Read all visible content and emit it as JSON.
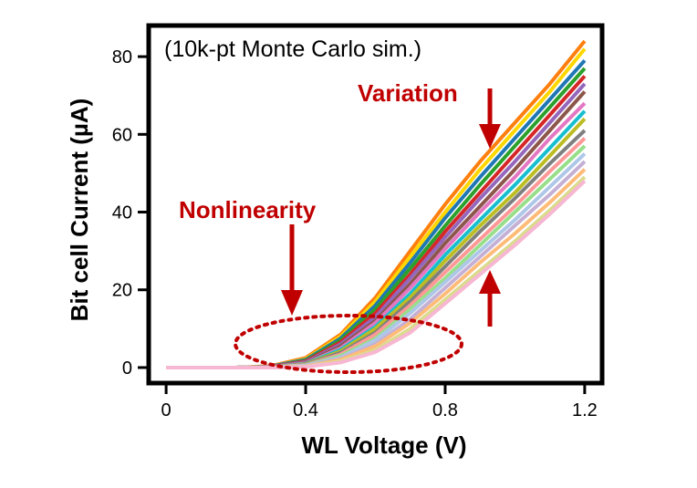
{
  "chart_data": {
    "type": "line",
    "title": "(10k-pt Monte Carlo sim.)",
    "xlabel": "WL Voltage (V)",
    "ylabel": "Bit cell Current (µA)",
    "xlim": [
      -0.05,
      1.25
    ],
    "ylim": [
      -4,
      88
    ],
    "xticks": [
      0,
      0.4,
      0.8,
      1.2
    ],
    "xtick_labels": [
      "0",
      "0.4",
      "0.8",
      "1.2"
    ],
    "yticks": [
      0,
      20,
      40,
      60,
      80
    ],
    "ytick_labels": [
      "0",
      "20",
      "40",
      "60",
      "80"
    ],
    "grid": false,
    "legend": "none",
    "x": [
      0,
      0.1,
      0.2,
      0.3,
      0.4,
      0.5,
      0.6,
      0.7,
      0.8,
      0.9,
      1.0,
      1.1,
      1.2
    ],
    "series": [
      {
        "color": "#ff7f0e",
        "values": [
          0,
          0,
          0,
          0.4,
          2.5,
          8.5,
          18,
          30,
          42,
          53,
          63,
          73,
          84
        ]
      },
      {
        "color": "#ffd700",
        "values": [
          0,
          0,
          0,
          0.3,
          2.2,
          8,
          17,
          28.5,
          40,
          51,
          61,
          71,
          82
        ]
      },
      {
        "color": "#1f77b4",
        "values": [
          0,
          0,
          0,
          0.3,
          2,
          7.5,
          16,
          27,
          38.5,
          49,
          59,
          69,
          79
        ]
      },
      {
        "color": "#2ca02c",
        "values": [
          0,
          0,
          0,
          0.2,
          1.8,
          7,
          15,
          25.5,
          36.5,
          47,
          57,
          67,
          77
        ]
      },
      {
        "color": "#d62728",
        "values": [
          0,
          0,
          0,
          0.2,
          1.6,
          6.5,
          14,
          24,
          35,
          45,
          55,
          65,
          75
        ]
      },
      {
        "color": "#9467bd",
        "values": [
          0,
          0,
          0,
          0.2,
          1.4,
          6,
          13,
          23,
          33.5,
          43.5,
          53,
          63,
          73
        ]
      },
      {
        "color": "#8c564b",
        "values": [
          0,
          0,
          0,
          0.15,
          1.2,
          5.5,
          12,
          21.5,
          32,
          41.5,
          51,
          61,
          71
        ]
      },
      {
        "color": "#e377c2",
        "values": [
          0,
          0,
          0,
          0.15,
          1.1,
          5,
          11.5,
          20.5,
          30.5,
          40,
          49,
          59,
          68
        ]
      },
      {
        "color": "#17becf",
        "values": [
          0,
          0,
          0,
          0.1,
          1,
          4.6,
          10.5,
          19,
          29,
          38,
          47,
          56.5,
          66
        ]
      },
      {
        "color": "#bcbd22",
        "values": [
          0,
          0,
          0,
          0.1,
          0.9,
          4.2,
          10,
          18,
          27.5,
          36.5,
          45,
          54.5,
          64
        ]
      },
      {
        "color": "#7f7f7f",
        "values": [
          0,
          0,
          0,
          0.1,
          0.8,
          3.8,
          9,
          17,
          26,
          35,
          43.5,
          52.5,
          61
        ]
      },
      {
        "color": "#ff9896",
        "values": [
          0,
          0,
          0,
          0.1,
          0.7,
          3.4,
          8.5,
          16,
          24.5,
          33,
          41.5,
          50.5,
          59
        ]
      },
      {
        "color": "#98df8a",
        "values": [
          0,
          0,
          0,
          0.05,
          0.6,
          3,
          7.5,
          15,
          23,
          31.5,
          40,
          48.5,
          57
        ]
      },
      {
        "color": "#aec7e8",
        "values": [
          0,
          0,
          0,
          0.05,
          0.5,
          2.6,
          7,
          14,
          22,
          30,
          38,
          46.5,
          55
        ]
      },
      {
        "color": "#c5b0d5",
        "values": [
          0,
          0,
          0,
          0.05,
          0.4,
          2.3,
          6,
          12.5,
          20.5,
          28.5,
          36.5,
          44.5,
          53
        ]
      },
      {
        "color": "#ffbb78",
        "values": [
          0,
          0,
          0,
          0.05,
          0.3,
          2,
          5.5,
          11.5,
          19,
          27,
          34.5,
          42.5,
          51
        ]
      },
      {
        "color": "#dbdb8d",
        "values": [
          0,
          0,
          0,
          0,
          0.25,
          1.6,
          4.5,
          10,
          17.5,
          25,
          32.5,
          40.5,
          49
        ]
      },
      {
        "color": "#f7b6d2",
        "values": [
          0,
          0,
          0,
          0,
          0.2,
          1.3,
          4,
          9,
          16.5,
          24,
          31.5,
          39.5,
          48
        ]
      }
    ],
    "annotations": {
      "variation": {
        "label": "Variation",
        "color": "#c00000"
      },
      "nonlinearity": {
        "label": "Nonlinearity",
        "color": "#c00000"
      }
    }
  }
}
